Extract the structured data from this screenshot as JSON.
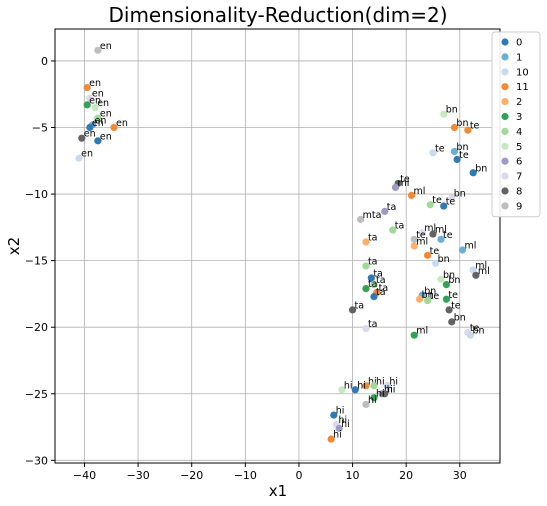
{
  "chart_data": {
    "type": "scatter",
    "title": "Dimensionality-Reduction(dim=2)",
    "xlabel": "x1",
    "ylabel": "x2",
    "xlim": [
      -45.5,
      37.5
    ],
    "ylim": [
      -30.2,
      2.4
    ],
    "xticks": [
      -40,
      -30,
      -20,
      -10,
      0,
      10,
      20,
      30
    ],
    "yticks": [
      0,
      -5,
      -10,
      -15,
      -20,
      -25,
      -30
    ],
    "grid": true,
    "legend_position": "upper-right, outside plot edge",
    "classes": [
      {
        "name": "0",
        "color": "#2f7ab5"
      },
      {
        "name": "1",
        "color": "#6baed6"
      },
      {
        "name": "10",
        "color": "#c6dbef"
      },
      {
        "name": "11",
        "color": "#f08a37"
      },
      {
        "name": "2",
        "color": "#fdae6b"
      },
      {
        "name": "3",
        "color": "#31a354"
      },
      {
        "name": "4",
        "color": "#a1d99b"
      },
      {
        "name": "5",
        "color": "#c7e9c0"
      },
      {
        "name": "6",
        "color": "#9e9ac8"
      },
      {
        "name": "7",
        "color": "#dadaeb"
      },
      {
        "name": "8",
        "color": "#636363"
      },
      {
        "name": "9",
        "color": "#bdbdbd"
      }
    ],
    "points": [
      {
        "x": -37.5,
        "y": 0.8,
        "label": "en",
        "cls": "9"
      },
      {
        "x": -39.5,
        "y": -2.0,
        "label": "en",
        "cls": "11"
      },
      {
        "x": -39.0,
        "y": -2.8,
        "label": "en",
        "cls": "7"
      },
      {
        "x": -39.5,
        "y": -3.3,
        "label": "en",
        "cls": "3"
      },
      {
        "x": -38.0,
        "y": -3.5,
        "label": "en",
        "cls": "5"
      },
      {
        "x": -37.5,
        "y": -4.3,
        "label": "en",
        "cls": "4"
      },
      {
        "x": -38.5,
        "y": -4.8,
        "label": "en",
        "cls": "1"
      },
      {
        "x": -39.0,
        "y": -5.0,
        "label": "en",
        "cls": "0"
      },
      {
        "x": -34.5,
        "y": -5.0,
        "label": "en",
        "cls": "11"
      },
      {
        "x": -40.5,
        "y": -5.8,
        "label": "en",
        "cls": "8"
      },
      {
        "x": -37.5,
        "y": -6.0,
        "label": "en",
        "cls": "0"
      },
      {
        "x": -41.0,
        "y": -7.3,
        "label": "en",
        "cls": "10"
      },
      {
        "x": 27.0,
        "y": -4.0,
        "label": "bn",
        "cls": "5"
      },
      {
        "x": 29.0,
        "y": -5.0,
        "label": "bn",
        "cls": "11"
      },
      {
        "x": 31.5,
        "y": -5.2,
        "label": "te",
        "cls": "11"
      },
      {
        "x": 29.0,
        "y": -6.8,
        "label": "bn",
        "cls": "1"
      },
      {
        "x": 25.0,
        "y": -6.9,
        "label": "te",
        "cls": "10"
      },
      {
        "x": 29.5,
        "y": -7.4,
        "label": "te",
        "cls": "0"
      },
      {
        "x": 32.5,
        "y": -8.4,
        "label": "bn",
        "cls": "0"
      },
      {
        "x": 18.5,
        "y": -9.2,
        "label": "te",
        "cls": "8"
      },
      {
        "x": 18.0,
        "y": -9.5,
        "label": "ml",
        "cls": "6"
      },
      {
        "x": 21.0,
        "y": -10.1,
        "label": "ml",
        "cls": "11"
      },
      {
        "x": 28.5,
        "y": -10.3,
        "label": "bn",
        "cls": "7"
      },
      {
        "x": 27.0,
        "y": -10.9,
        "label": "te",
        "cls": "0"
      },
      {
        "x": 24.5,
        "y": -10.8,
        "label": "te",
        "cls": "4"
      },
      {
        "x": 16.0,
        "y": -11.3,
        "label": "ta",
        "cls": "6"
      },
      {
        "x": 11.5,
        "y": -11.9,
        "label": "mta",
        "cls": "9"
      },
      {
        "x": 17.5,
        "y": -12.7,
        "label": "ta",
        "cls": "4"
      },
      {
        "x": 23.0,
        "y": -12.9,
        "label": "ml",
        "cls": "7"
      },
      {
        "x": 25.0,
        "y": -13.0,
        "label": "ml",
        "cls": "8"
      },
      {
        "x": 26.5,
        "y": -13.4,
        "label": "te",
        "cls": "1"
      },
      {
        "x": 21.5,
        "y": -13.4,
        "label": "te",
        "cls": "9"
      },
      {
        "x": 12.5,
        "y": -13.6,
        "label": "ta",
        "cls": "2"
      },
      {
        "x": 21.5,
        "y": -13.9,
        "label": "ml",
        "cls": "2"
      },
      {
        "x": 30.5,
        "y": -14.2,
        "label": "ml",
        "cls": "1"
      },
      {
        "x": 24.0,
        "y": -14.6,
        "label": "te",
        "cls": "11"
      },
      {
        "x": 25.5,
        "y": -15.2,
        "label": "bn",
        "cls": "10"
      },
      {
        "x": 12.5,
        "y": -15.4,
        "label": "ta",
        "cls": "4"
      },
      {
        "x": 32.5,
        "y": -15.7,
        "label": "ml",
        "cls": "10"
      },
      {
        "x": 33.0,
        "y": -16.1,
        "label": "ml",
        "cls": "8"
      },
      {
        "x": 13.5,
        "y": -16.3,
        "label": "ta",
        "cls": "0"
      },
      {
        "x": 26.5,
        "y": -16.4,
        "label": "bn",
        "cls": "5"
      },
      {
        "x": 27.5,
        "y": -16.8,
        "label": "bn",
        "cls": "3"
      },
      {
        "x": 14.0,
        "y": -16.8,
        "label": "ta",
        "cls": "4"
      },
      {
        "x": 12.5,
        "y": -17.1,
        "label": "ta",
        "cls": "3"
      },
      {
        "x": 14.5,
        "y": -17.4,
        "label": "ta",
        "cls": "11"
      },
      {
        "x": 14.0,
        "y": -17.7,
        "label": "ta",
        "cls": "0"
      },
      {
        "x": 23.0,
        "y": -17.6,
        "label": "bn",
        "cls": "1"
      },
      {
        "x": 22.5,
        "y": -17.9,
        "label": "bn",
        "cls": "2"
      },
      {
        "x": 24.0,
        "y": -18.0,
        "label": "te",
        "cls": "4"
      },
      {
        "x": 27.5,
        "y": -17.9,
        "label": "te",
        "cls": "3"
      },
      {
        "x": 28.0,
        "y": -18.7,
        "label": "te",
        "cls": "8"
      },
      {
        "x": 10.0,
        "y": -18.7,
        "label": "ta",
        "cls": "8"
      },
      {
        "x": 28.5,
        "y": -19.6,
        "label": "bn",
        "cls": "8"
      },
      {
        "x": 12.5,
        "y": -20.1,
        "label": "ta",
        "cls": "7"
      },
      {
        "x": 31.5,
        "y": -20.4,
        "label": "te",
        "cls": "7"
      },
      {
        "x": 32.0,
        "y": -20.6,
        "label": "bn",
        "cls": "10"
      },
      {
        "x": 21.5,
        "y": -20.6,
        "label": "ml",
        "cls": "3"
      },
      {
        "x": 12.5,
        "y": -24.4,
        "label": "hi",
        "cls": "11"
      },
      {
        "x": 14.0,
        "y": -24.4,
        "label": "hi",
        "cls": "4"
      },
      {
        "x": 16.5,
        "y": -24.4,
        "label": "hi",
        "cls": "10"
      },
      {
        "x": 8.0,
        "y": -24.7,
        "label": "hi",
        "cls": "5"
      },
      {
        "x": 10.5,
        "y": -24.7,
        "label": "hi",
        "cls": "0"
      },
      {
        "x": 15.5,
        "y": -25.0,
        "label": "hi",
        "cls": "6"
      },
      {
        "x": 16.0,
        "y": -25.0,
        "label": "hi",
        "cls": "8"
      },
      {
        "x": 14.0,
        "y": -25.3,
        "label": "hi",
        "cls": "3"
      },
      {
        "x": 12.5,
        "y": -25.8,
        "label": "hi",
        "cls": "9"
      },
      {
        "x": 6.5,
        "y": -26.6,
        "label": "hi",
        "cls": "0"
      },
      {
        "x": 7.0,
        "y": -27.3,
        "label": "hi",
        "cls": "7"
      },
      {
        "x": 7.5,
        "y": -27.6,
        "label": "hi",
        "cls": "6"
      },
      {
        "x": 6.0,
        "y": -28.4,
        "label": "hi",
        "cls": "11"
      }
    ]
  }
}
